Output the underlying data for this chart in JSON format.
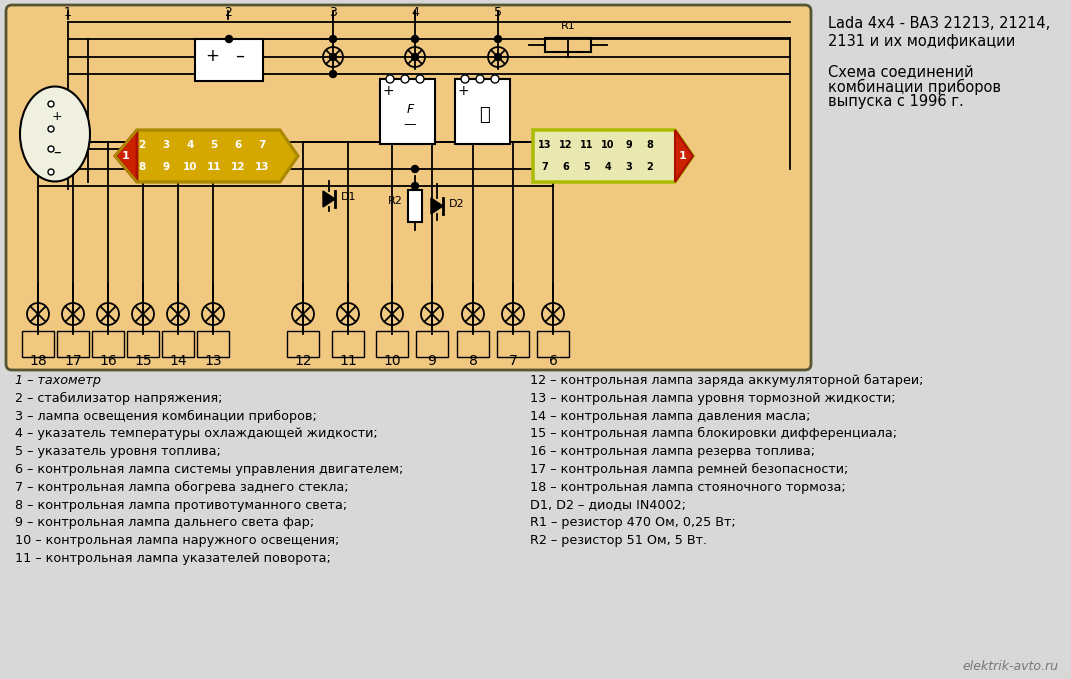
{
  "bg_color": "#f0c880",
  "outer_bg": "#d8d8d8",
  "title_line1": "Lada 4x4 - ВАЗ 21213, 21214,",
  "title_line2": "2131 и их модификации",
  "subtitle_line1": "Схема соединений",
  "subtitle_line2": "комбинации приборов",
  "subtitle_line3": "выпуска с 1996 г.",
  "watermark": "elektrik-avto.ru",
  "legend_left": [
    "1 – тахометр",
    "2 – стабилизатор напряжения;",
    "3 – лампа освещения комбинации приборов;",
    "4 – указатель температуры охлаждающей жидкости;",
    "5 – указатель уровня топлива;",
    "6 – контрольная лампа системы управления двигателем;",
    "7 – контрольная лампа обогрева заднего стекла;",
    "8 – контрольная лампа противотуманного света;",
    "9 – контрольная лампа дальнего света фар;",
    "10 – контрольная лампа наружного освещения;",
    "11 – контрольная лампа указателей поворота;"
  ],
  "legend_right": [
    "12 – контрольная лампа заряда аккумуляторной батареи;",
    "13 – контрольная лампа уровня тормозной жидкости;",
    "14 – контрольная лампа давления масла;",
    "15 – контрольная лампа блокировки дифференциала;",
    "16 – контрольная лампа резерва топлива;",
    "17 – контрольная лампа ремней безопасности;",
    "18 – контрольная лампа стояночного тормоза;",
    "D1, D2 – диоды IN4002;",
    "R1 – резистор 470 Ом, 0,25 Вт;",
    "R2 – резистор 51 Ом, 5 Вт."
  ]
}
